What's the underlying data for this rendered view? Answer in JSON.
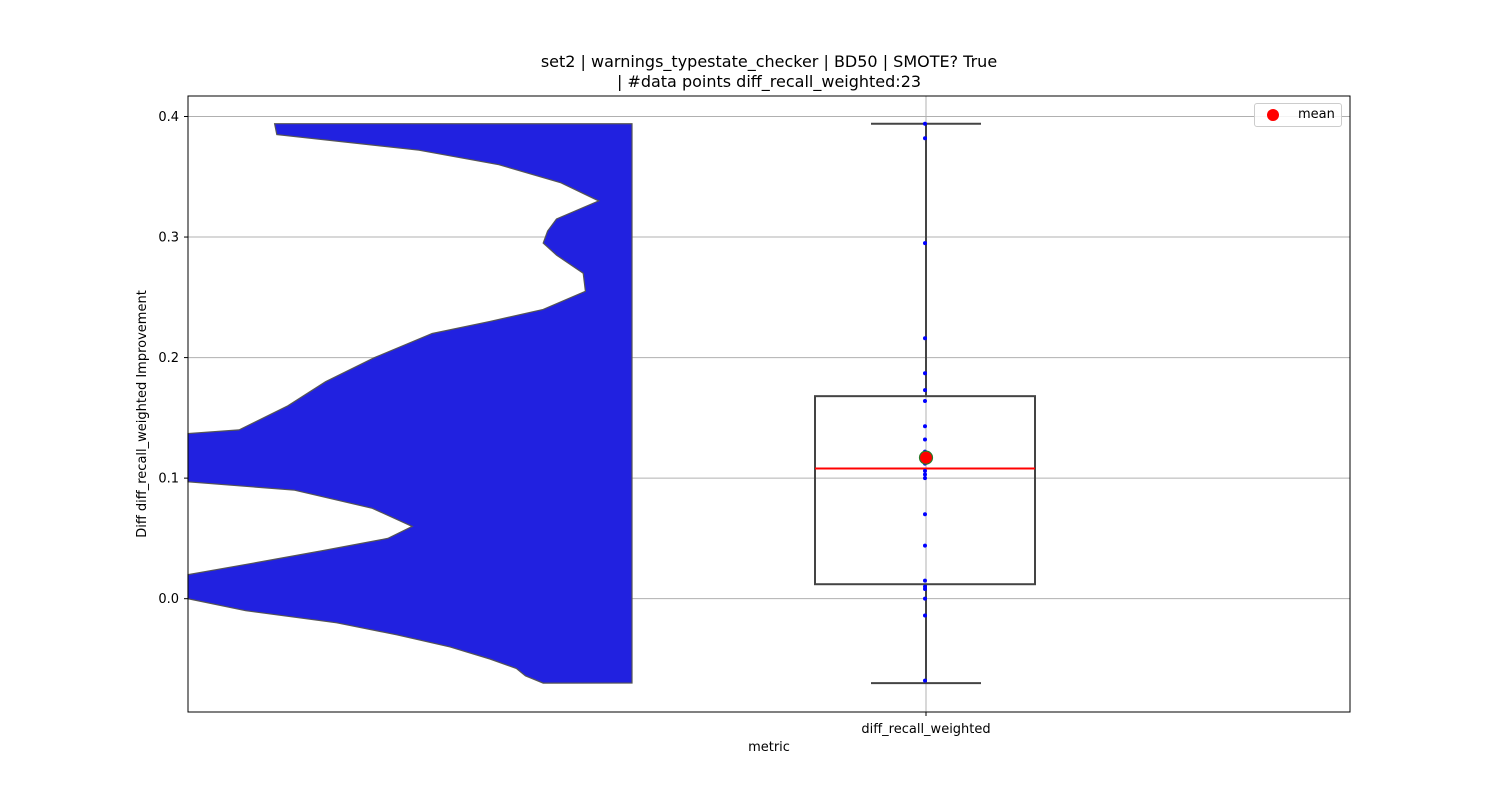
{
  "chart_data": {
    "type": "violin+box",
    "title": "set2 | warnings_typestate_checker | BD50 | SMOTE? True",
    "subtitle": "| #data points diff_recall_weighted:23",
    "xlabel": "metric",
    "ylabel": "Diff diff_recall_weighted Improvement",
    "categories": [
      "diff_recall_weighted"
    ],
    "ylim": [
      -0.094,
      0.417
    ],
    "yticks": [
      0.0,
      0.1,
      0.2,
      0.3,
      0.4
    ],
    "ytick_labels": [
      "0.0",
      "0.1",
      "0.2",
      "0.3",
      "0.4"
    ],
    "grid": true,
    "legend": {
      "position": "top-right",
      "entries": [
        {
          "label": "mean",
          "color": "#ff0000"
        }
      ]
    },
    "box": {
      "whisker_low": -0.07,
      "q1": 0.012,
      "median": 0.108,
      "q3": 0.168,
      "whisker_high": 0.394,
      "mean": 0.117,
      "box_color": "#444444",
      "median_color": "#ff0000",
      "mean_color": "#ff0000"
    },
    "points": [
      0.382,
      0.295,
      0.216,
      0.187,
      0.173,
      0.164,
      0.143,
      0.132,
      0.118,
      0.112,
      0.106,
      0.1,
      0.07,
      0.044,
      0.015,
      0.01,
      0.008,
      0.0,
      -0.014,
      -0.068,
      0.394,
      0.122,
      0.103
    ],
    "points_color": "#0000ff",
    "violin": {
      "color": "#2121e0",
      "y": [
        0.394,
        0.385,
        0.372,
        0.36,
        0.345,
        0.33,
        0.315,
        0.305,
        0.295,
        0.285,
        0.27,
        0.255,
        0.24,
        0.23,
        0.22,
        0.2,
        0.18,
        0.16,
        0.14,
        0.137,
        0.12,
        0.097,
        0.09,
        0.075,
        0.06,
        0.05,
        0.04,
        0.03,
        0.02,
        0.01,
        0.0,
        -0.01,
        -0.02,
        -0.03,
        -0.04,
        -0.05,
        -0.058,
        -0.064,
        -0.07
      ],
      "left_boundary": [
        0.0,
        0.0,
        0.0,
        0.0,
        0.0,
        0.0,
        0.0,
        0.0,
        0.0,
        0.0,
        0.0,
        0.0,
        0.0,
        0.0,
        0.0,
        0.0,
        0.0,
        0.0,
        0.0,
        0.0,
        0.0,
        0.0,
        0.0,
        0.0,
        0.0,
        0.0,
        0.0,
        0.0,
        0.0,
        0.0,
        0.0,
        0.0,
        0.0,
        0.0,
        0.0,
        0.0,
        0.0,
        0.0,
        0.0
      ],
      "right_density": [
        0.195,
        0.2,
        0.52,
        0.7,
        0.84,
        0.925,
        0.83,
        0.81,
        0.8,
        0.83,
        0.89,
        0.895,
        0.8,
        0.68,
        0.55,
        0.42,
        0.31,
        0.225,
        0.115,
        0.0,
        0.0,
        0.0,
        0.24,
        0.415,
        0.505,
        0.45,
        0.305,
        0.155,
        0.0,
        0.0,
        0.0,
        0.13,
        0.335,
        0.47,
        0.59,
        0.68,
        0.74,
        0.76,
        0.8
      ],
      "left_density": [
        0.0,
        0.0,
        0.0,
        0.0,
        0.0,
        0.0,
        0.0,
        0.0,
        0.0,
        0.0,
        0.0,
        0.0,
        0.0,
        0.0,
        0.0,
        0.0,
        0.0,
        0.0,
        0.0,
        0.0,
        0.0,
        0.0,
        0.0,
        0.0,
        0.0,
        0.0,
        0.0,
        0.0,
        0.0,
        0.0,
        0.0,
        0.0,
        0.0,
        0.0,
        0.0,
        0.0,
        0.0,
        0.0,
        0.0
      ]
    }
  }
}
